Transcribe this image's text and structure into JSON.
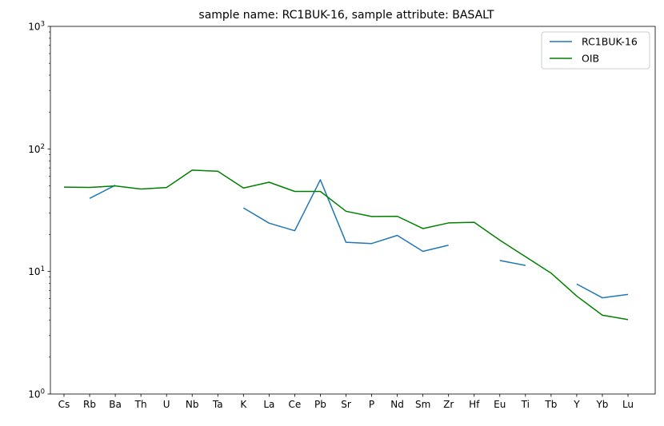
{
  "chart_data": {
    "type": "line",
    "title": "sample name: RC1BUK-16, sample attribute: BASALT",
    "xlabel": "",
    "ylabel": "",
    "yscale": "log",
    "ylim": [
      1,
      1000
    ],
    "yticks": [
      {
        "value": 1,
        "base": "10",
        "exp": "0"
      },
      {
        "value": 10,
        "base": "10",
        "exp": "1"
      },
      {
        "value": 100,
        "base": "10",
        "exp": "2"
      },
      {
        "value": 1000,
        "base": "10",
        "exp": "3"
      }
    ],
    "categories": [
      "Cs",
      "Rb",
      "Ba",
      "Th",
      "U",
      "Nb",
      "Ta",
      "K",
      "La",
      "Ce",
      "Pb",
      "Sr",
      "P",
      "Nd",
      "Sm",
      "Zr",
      "Hf",
      "Eu",
      "Ti",
      "Tb",
      "Y",
      "Yb",
      "Lu"
    ],
    "legend_position": "top-right",
    "grid": false,
    "series": [
      {
        "name": "RC1BUK-16",
        "color": "#1f77b4",
        "values": [
          null,
          39.5,
          50.5,
          null,
          null,
          null,
          null,
          33.0,
          24.8,
          21.5,
          56.0,
          17.3,
          16.9,
          19.7,
          14.6,
          16.4,
          null,
          12.3,
          11.2,
          null,
          7.9,
          6.1,
          6.5
        ]
      },
      {
        "name": "OIB",
        "color": "#008000",
        "values": [
          48.8,
          48.5,
          49.9,
          47.1,
          48.4,
          67.1,
          65.8,
          48.0,
          53.5,
          45.0,
          45.0,
          31.0,
          28.1,
          28.2,
          22.4,
          24.9,
          25.2,
          18.0,
          13.2,
          9.7,
          6.3,
          4.4,
          4.05
        ]
      }
    ]
  }
}
